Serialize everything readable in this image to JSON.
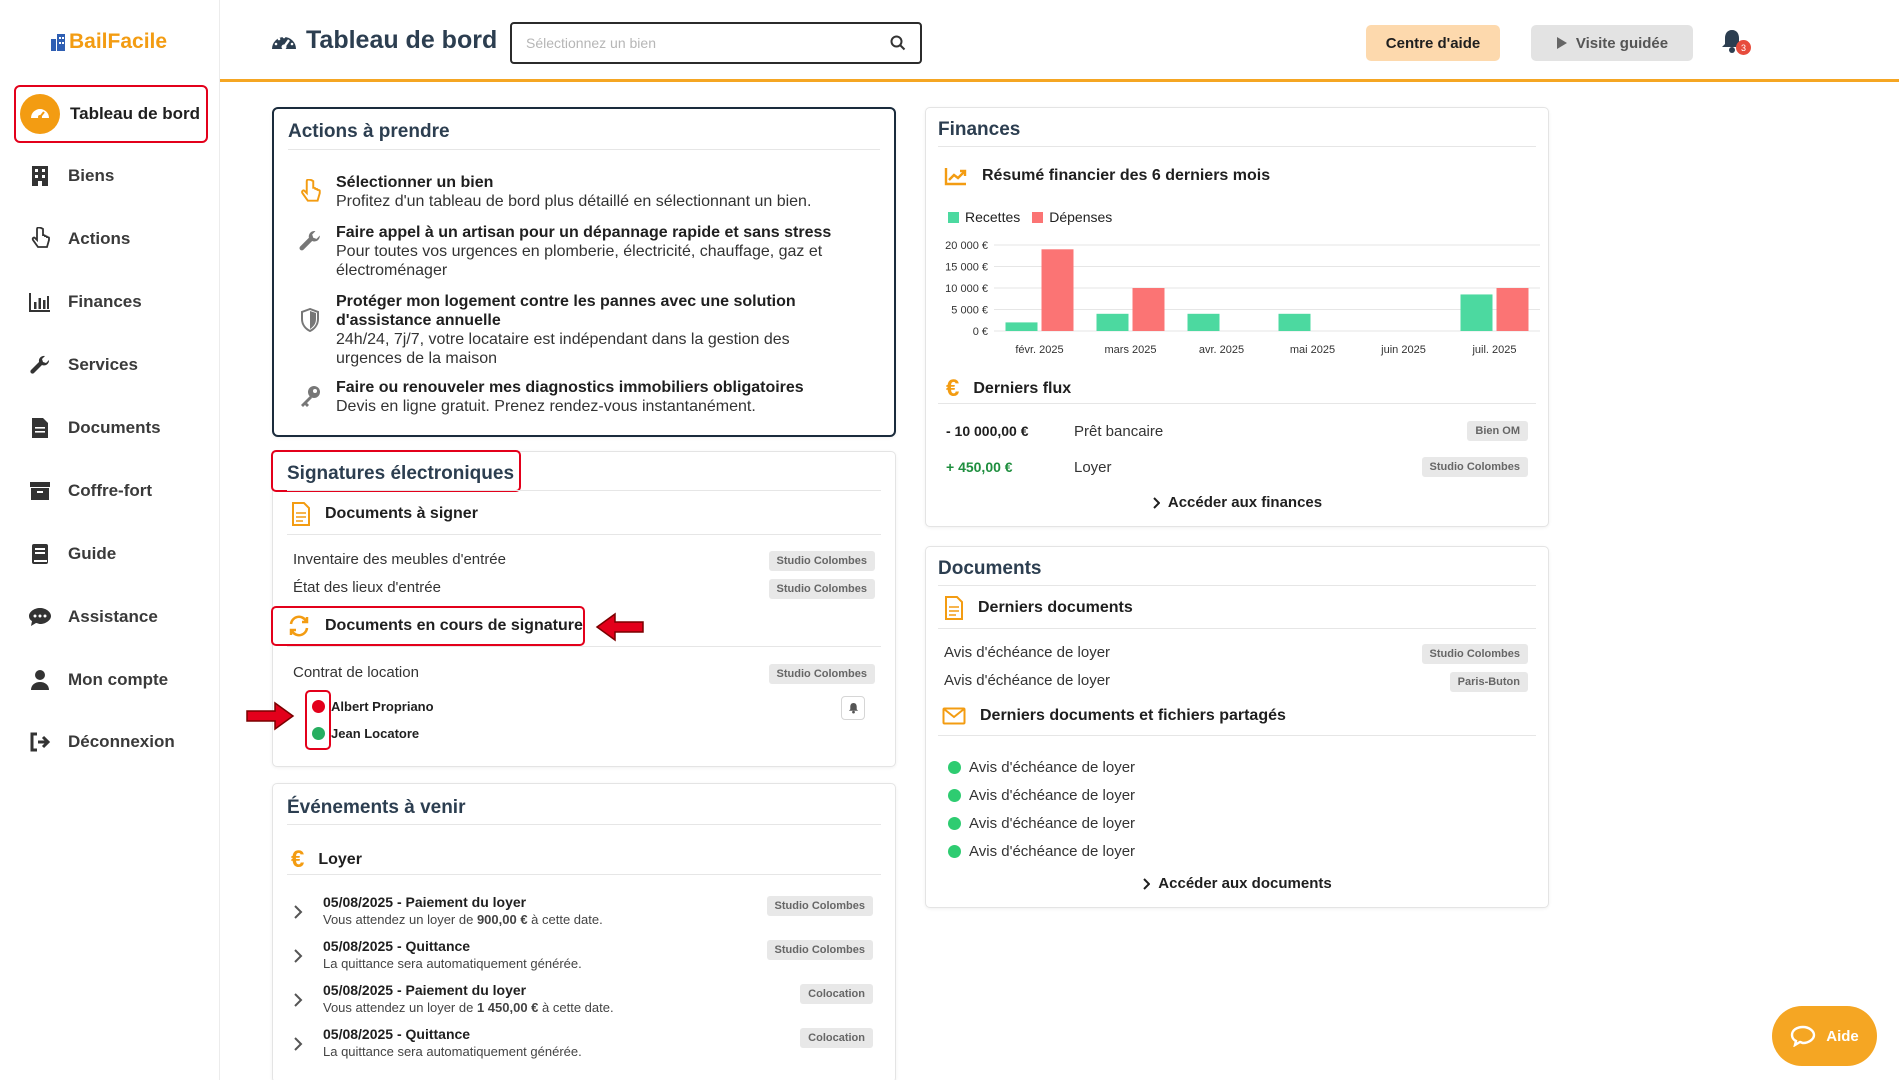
{
  "app": {
    "name": "BailFacile"
  },
  "sidebar": {
    "items": [
      {
        "label": "Tableau de bord"
      },
      {
        "label": "Biens"
      },
      {
        "label": "Actions"
      },
      {
        "label": "Finances"
      },
      {
        "label": "Services"
      },
      {
        "label": "Documents"
      },
      {
        "label": "Coffre-fort"
      },
      {
        "label": "Guide"
      },
      {
        "label": "Assistance"
      },
      {
        "label": "Mon compte"
      },
      {
        "label": "Déconnexion"
      }
    ]
  },
  "header": {
    "title": "Tableau de bord",
    "search_placeholder": "Sélectionnez un bien",
    "help_label": "Centre d'aide",
    "tour_label": "Visite guidée",
    "notif_count": "3"
  },
  "actions": {
    "title": "Actions à prendre",
    "items": [
      {
        "title": "Sélectionner un bien",
        "desc": "Profitez d'un tableau de bord plus détaillé en sélectionnant un bien."
      },
      {
        "title": "Faire appel à un artisan pour un dépannage rapide et sans stress",
        "desc": "Pour toutes vos urgences en plomberie, électricité, chauffage, gaz et électroménager"
      },
      {
        "title": "Protéger mon logement contre les pannes avec une solution d'assistance annuelle",
        "desc": "24h/24, 7j/7, votre locataire est indépendant dans la gestion des urgences de la maison"
      },
      {
        "title": "Faire ou renouveler mes diagnostics immobiliers obligatoires",
        "desc": "Devis en ligne gratuit. Prenez rendez-vous instantanément."
      }
    ]
  },
  "signatures": {
    "title": "Signatures électroniques",
    "to_sign_title": "Documents à signer",
    "to_sign": [
      {
        "name": "Inventaire des meubles d'entrée",
        "tag": "Studio Colombes"
      },
      {
        "name": "État des lieux d'entrée",
        "tag": "Studio Colombes"
      }
    ],
    "in_progress_title": "Documents en cours de signature",
    "in_progress": {
      "name": "Contrat de location",
      "tag": "Studio Colombes"
    },
    "signers": [
      {
        "name": "Albert Propriano",
        "status_color": "#e3001b"
      },
      {
        "name": "Jean Locatore",
        "status_color": "#27ae60"
      }
    ]
  },
  "events": {
    "title": "Événements à venir",
    "rent_title": "Loyer",
    "items": [
      {
        "title": "05/08/2025 - Paiement du loyer",
        "desc_pre": "Vous attendez un loyer de ",
        "amount": "900,00 €",
        "desc_post": " à cette date.",
        "tag": "Studio Colombes"
      },
      {
        "title": "05/08/2025 - Quittance",
        "desc": "La quittance sera automatiquement générée.",
        "tag": "Studio Colombes"
      },
      {
        "title": "05/08/2025 - Paiement du loyer",
        "desc_pre": "Vous attendez un loyer de ",
        "amount": "1 450,00 €",
        "desc_post": " à cette date.",
        "tag": "Colocation"
      },
      {
        "title": "05/08/2025 - Quittance",
        "desc": "La quittance sera automatiquement générée.",
        "tag": "Colocation"
      }
    ]
  },
  "finances": {
    "title": "Finances",
    "summary_title": "Résumé financier des 6 derniers mois",
    "flows_title": "Derniers flux",
    "flows": [
      {
        "amount": "- 10 000,00 €",
        "label": "Prêt bancaire",
        "tag": "Bien OM",
        "color": "#1f1f1f"
      },
      {
        "amount": "+ 450,00 €",
        "label": "Loyer",
        "tag": "Studio Colombes",
        "color": "#1e8e3e"
      }
    ],
    "link": "Accéder aux finances"
  },
  "chart_data": {
    "type": "bar",
    "categories": [
      "févr. 2025",
      "mars 2025",
      "avr. 2025",
      "mai 2025",
      "juin 2025",
      "juil. 2025"
    ],
    "series": [
      {
        "name": "Recettes",
        "color": "#4cd9a0",
        "values": [
          2000,
          4000,
          4000,
          4000,
          0,
          8500
        ]
      },
      {
        "name": "Dépenses",
        "color": "#fb7474",
        "values": [
          19000,
          10000,
          0,
          0,
          0,
          10000
        ]
      }
    ],
    "ylim": [
      0,
      20000
    ],
    "yticks": [
      {
        "value": 0,
        "label": "0 €"
      },
      {
        "value": 5000,
        "label": "5 000 €"
      },
      {
        "value": 10000,
        "label": "10 000 €"
      },
      {
        "value": 15000,
        "label": "15 000 €"
      },
      {
        "value": 20000,
        "label": "20 000 €"
      }
    ],
    "legend": "top-left",
    "grid": true
  },
  "documents": {
    "title": "Documents",
    "latest_title": "Derniers documents",
    "latest": [
      {
        "name": "Avis d'échéance de loyer",
        "tag": "Studio Colombes"
      },
      {
        "name": "Avis d'échéance de loyer",
        "tag": "Paris-Buton"
      }
    ],
    "shared_title": "Derniers documents et fichiers partagés",
    "shared": [
      {
        "name": "Avis d'échéance de loyer"
      },
      {
        "name": "Avis d'échéance de loyer"
      },
      {
        "name": "Avis d'échéance de loyer"
      },
      {
        "name": "Avis d'échéance de loyer"
      }
    ],
    "link": "Accéder aux documents"
  },
  "aide": {
    "label": "Aide"
  },
  "colors": {
    "accent": "#f5a623",
    "highlight": "#e3001b"
  }
}
